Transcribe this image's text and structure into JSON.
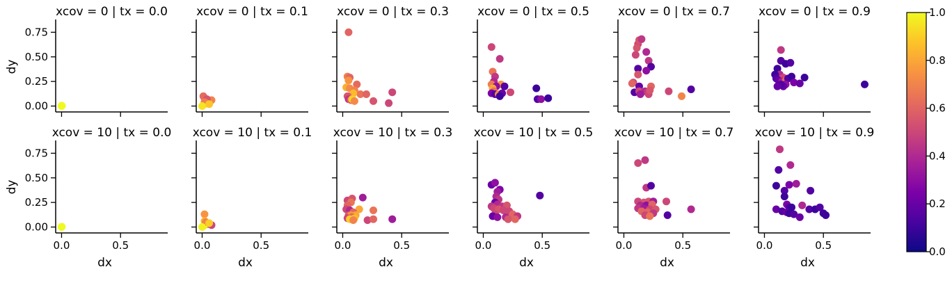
{
  "chart_data": {
    "type": "scatter",
    "grid": false,
    "shared_axes": true,
    "xlabel": "dx",
    "ylabel": "dy",
    "xlim": [
      -0.05,
      0.9
    ],
    "ylim": [
      -0.06,
      0.88
    ],
    "xticks": [
      0.0,
      0.5
    ],
    "xtick_labels": [
      "0.0",
      "0.5"
    ],
    "yticks": [
      0.0,
      0.25,
      0.5,
      0.75
    ],
    "ytick_labels": [
      "0.00",
      "0.25",
      "0.50",
      "0.75"
    ],
    "colormap": "plasma",
    "colorbar": {
      "range": [
        0.0,
        1.0
      ],
      "ticks": [
        0.0,
        0.2,
        0.4,
        0.6,
        0.8,
        1.0
      ],
      "tick_labels": [
        "0.0",
        "0.2",
        "0.4",
        "0.6",
        "0.8",
        "1.0"
      ],
      "placement": "right"
    },
    "panels": [
      {
        "title": "xcov = 0 | tx = 0.0",
        "points": [
          [
            0.0,
            0.0,
            1.0
          ],
          [
            0.003,
            0.002,
            1.0
          ],
          [
            0.001,
            0.004,
            1.0
          ]
        ]
      },
      {
        "title": "xcov = 0 | tx = 0.1",
        "points": [
          [
            0.02,
            0.08,
            0.72
          ],
          [
            0.01,
            0.1,
            0.62
          ],
          [
            0.03,
            0.05,
            0.85
          ],
          [
            0.05,
            0.03,
            0.9
          ],
          [
            0.02,
            0.02,
            0.93
          ],
          [
            0.01,
            0.01,
            0.97
          ],
          [
            0.08,
            0.06,
            0.7
          ],
          [
            0.04,
            0.07,
            0.55
          ],
          [
            0.03,
            0.03,
            0.8
          ],
          [
            0.02,
            0.04,
            0.68
          ],
          [
            0.06,
            0.02,
            0.88
          ],
          [
            0.0,
            0.0,
            0.95
          ]
        ]
      },
      {
        "title": "xcov = 0 | tx = 0.3",
        "points": [
          [
            0.05,
            0.75,
            0.6
          ],
          [
            0.04,
            0.3,
            0.68
          ],
          [
            0.06,
            0.29,
            0.6
          ],
          [
            0.05,
            0.26,
            0.75
          ],
          [
            0.03,
            0.19,
            0.82
          ],
          [
            0.06,
            0.18,
            0.72
          ],
          [
            0.12,
            0.22,
            0.62
          ],
          [
            0.1,
            0.16,
            0.7
          ],
          [
            0.15,
            0.12,
            0.65
          ],
          [
            0.2,
            0.12,
            0.6
          ],
          [
            0.08,
            0.11,
            0.82
          ],
          [
            0.09,
            0.13,
            0.85
          ],
          [
            0.05,
            0.1,
            0.75
          ],
          [
            0.04,
            0.1,
            0.55
          ],
          [
            0.05,
            0.07,
            0.45
          ],
          [
            0.07,
            0.06,
            0.6
          ],
          [
            0.08,
            0.07,
            0.9
          ],
          [
            0.1,
            0.05,
            0.72
          ],
          [
            0.26,
            0.05,
            0.55
          ],
          [
            0.39,
            0.03,
            0.5
          ],
          [
            0.42,
            0.14,
            0.5
          ]
        ]
      },
      {
        "title": "xcov = 0 | tx = 0.5",
        "points": [
          [
            0.07,
            0.6,
            0.5
          ],
          [
            0.14,
            0.48,
            0.45
          ],
          [
            0.08,
            0.35,
            0.65
          ],
          [
            0.1,
            0.3,
            0.45
          ],
          [
            0.09,
            0.25,
            0.4
          ],
          [
            0.07,
            0.22,
            0.68
          ],
          [
            0.15,
            0.22,
            0.75
          ],
          [
            0.11,
            0.2,
            0.3
          ],
          [
            0.18,
            0.2,
            0.15
          ],
          [
            0.08,
            0.18,
            0.8
          ],
          [
            0.09,
            0.15,
            0.65
          ],
          [
            0.07,
            0.13,
            0.25
          ],
          [
            0.1,
            0.12,
            0.15
          ],
          [
            0.13,
            0.12,
            0.72
          ],
          [
            0.16,
            0.13,
            0.2
          ],
          [
            0.14,
            0.1,
            0.1
          ],
          [
            0.23,
            0.14,
            0.5
          ],
          [
            0.45,
            0.18,
            0.1
          ],
          [
            0.46,
            0.07,
            0.15
          ],
          [
            0.49,
            0.07,
            0.3
          ],
          [
            0.55,
            0.08,
            0.1
          ]
        ]
      },
      {
        "title": "xcov = 0 | tx = 0.7",
        "points": [
          [
            0.12,
            0.63,
            0.5
          ],
          [
            0.13,
            0.67,
            0.55
          ],
          [
            0.15,
            0.68,
            0.45
          ],
          [
            0.11,
            0.59,
            0.55
          ],
          [
            0.1,
            0.52,
            0.5
          ],
          [
            0.19,
            0.55,
            0.4
          ],
          [
            0.21,
            0.46,
            0.45
          ],
          [
            0.12,
            0.38,
            0.15
          ],
          [
            0.23,
            0.4,
            0.15
          ],
          [
            0.19,
            0.36,
            0.3
          ],
          [
            0.12,
            0.32,
            0.55
          ],
          [
            0.08,
            0.24,
            0.5
          ],
          [
            0.07,
            0.23,
            0.6
          ],
          [
            0.13,
            0.2,
            0.2
          ],
          [
            0.23,
            0.2,
            0.6
          ],
          [
            0.09,
            0.14,
            0.15
          ],
          [
            0.13,
            0.15,
            0.5
          ],
          [
            0.18,
            0.15,
            0.4
          ],
          [
            0.2,
            0.14,
            0.45
          ],
          [
            0.21,
            0.12,
            0.5
          ],
          [
            0.22,
            0.16,
            0.55
          ],
          [
            0.14,
            0.12,
            0.35
          ],
          [
            0.38,
            0.15,
            0.5
          ],
          [
            0.49,
            0.1,
            0.7
          ],
          [
            0.57,
            0.17,
            0.15
          ]
        ]
      },
      {
        "title": "xcov = 0 | tx = 0.9",
        "points": [
          [
            0.14,
            0.57,
            0.45
          ],
          [
            0.14,
            0.46,
            0.15
          ],
          [
            0.18,
            0.43,
            0.1
          ],
          [
            0.22,
            0.44,
            0.15
          ],
          [
            0.11,
            0.38,
            0.1
          ],
          [
            0.13,
            0.32,
            0.4
          ],
          [
            0.16,
            0.29,
            0.5
          ],
          [
            0.09,
            0.32,
            0.1
          ],
          [
            0.1,
            0.28,
            0.15
          ],
          [
            0.12,
            0.26,
            0.2
          ],
          [
            0.15,
            0.25,
            0.35
          ],
          [
            0.18,
            0.26,
            0.6
          ],
          [
            0.2,
            0.28,
            0.15
          ],
          [
            0.23,
            0.3,
            0.1
          ],
          [
            0.25,
            0.24,
            0.25
          ],
          [
            0.3,
            0.23,
            0.2
          ],
          [
            0.34,
            0.29,
            0.1
          ],
          [
            0.18,
            0.22,
            0.3
          ],
          [
            0.16,
            0.2,
            0.2
          ],
          [
            0.14,
            0.22,
            0.15
          ],
          [
            0.11,
            0.2,
            0.2
          ],
          [
            0.85,
            0.22,
            0.1
          ]
        ]
      },
      {
        "title": "xcov = 10 | tx = 0.0",
        "points": [
          [
            0.0,
            0.0,
            1.0
          ],
          [
            0.002,
            0.003,
            1.0
          ],
          [
            0.001,
            0.001,
            1.0
          ]
        ]
      },
      {
        "title": "xcov = 10 | tx = 0.1",
        "points": [
          [
            0.02,
            0.13,
            0.75
          ],
          [
            0.02,
            0.06,
            0.85
          ],
          [
            0.03,
            0.04,
            0.95
          ],
          [
            0.05,
            0.03,
            0.55
          ],
          [
            0.02,
            0.02,
            0.92
          ],
          [
            0.01,
            0.01,
            0.97
          ],
          [
            0.08,
            0.02,
            0.5
          ],
          [
            0.03,
            0.05,
            0.7
          ],
          [
            0.06,
            0.04,
            0.9
          ],
          [
            0.0,
            0.0,
            0.98
          ]
        ]
      },
      {
        "title": "xcov = 10 | tx = 0.3",
        "points": [
          [
            0.04,
            0.27,
            0.5
          ],
          [
            0.08,
            0.29,
            0.55
          ],
          [
            0.17,
            0.3,
            0.35
          ],
          [
            0.07,
            0.25,
            0.65
          ],
          [
            0.04,
            0.22,
            0.6
          ],
          [
            0.03,
            0.18,
            0.5
          ],
          [
            0.06,
            0.17,
            0.4
          ],
          [
            0.14,
            0.18,
            0.8
          ],
          [
            0.26,
            0.17,
            0.65
          ],
          [
            0.09,
            0.15,
            0.6
          ],
          [
            0.05,
            0.12,
            0.55
          ],
          [
            0.07,
            0.12,
            0.75
          ],
          [
            0.11,
            0.12,
            0.8
          ],
          [
            0.04,
            0.09,
            0.5
          ],
          [
            0.08,
            0.1,
            0.6
          ],
          [
            0.1,
            0.09,
            0.85
          ],
          [
            0.06,
            0.08,
            0.9
          ],
          [
            0.21,
            0.07,
            0.5
          ],
          [
            0.26,
            0.08,
            0.6
          ],
          [
            0.42,
            0.08,
            0.35
          ],
          [
            0.09,
            0.07,
            0.7
          ]
        ]
      },
      {
        "title": "xcov = 10 | tx = 0.5",
        "points": [
          [
            0.07,
            0.43,
            0.2
          ],
          [
            0.1,
            0.45,
            0.3
          ],
          [
            0.14,
            0.38,
            0.25
          ],
          [
            0.12,
            0.36,
            0.35
          ],
          [
            0.11,
            0.31,
            0.4
          ],
          [
            0.13,
            0.28,
            0.45
          ],
          [
            0.1,
            0.25,
            0.2
          ],
          [
            0.12,
            0.23,
            0.4
          ],
          [
            0.07,
            0.21,
            0.45
          ],
          [
            0.16,
            0.21,
            0.45
          ],
          [
            0.2,
            0.22,
            0.55
          ],
          [
            0.09,
            0.19,
            0.5
          ],
          [
            0.13,
            0.18,
            0.55
          ],
          [
            0.17,
            0.17,
            0.5
          ],
          [
            0.22,
            0.16,
            0.5
          ],
          [
            0.1,
            0.13,
            0.5
          ],
          [
            0.25,
            0.13,
            0.6
          ],
          [
            0.08,
            0.11,
            0.2
          ],
          [
            0.12,
            0.1,
            0.3
          ],
          [
            0.19,
            0.1,
            0.4
          ],
          [
            0.29,
            0.11,
            0.45
          ],
          [
            0.21,
            0.08,
            0.55
          ],
          [
            0.27,
            0.08,
            0.6
          ],
          [
            0.48,
            0.32,
            0.15
          ]
        ]
      },
      {
        "title": "xcov = 10 | tx = 0.7",
        "points": [
          [
            0.12,
            0.65,
            0.5
          ],
          [
            0.18,
            0.68,
            0.45
          ],
          [
            0.19,
            0.4,
            0.45
          ],
          [
            0.23,
            0.42,
            0.15
          ],
          [
            0.12,
            0.26,
            0.5
          ],
          [
            0.17,
            0.25,
            0.55
          ],
          [
            0.21,
            0.26,
            0.55
          ],
          [
            0.25,
            0.26,
            0.35
          ],
          [
            0.36,
            0.26,
            0.5
          ],
          [
            0.14,
            0.22,
            0.4
          ],
          [
            0.19,
            0.22,
            0.3
          ],
          [
            0.24,
            0.23,
            0.6
          ],
          [
            0.12,
            0.19,
            0.45
          ],
          [
            0.17,
            0.19,
            0.35
          ],
          [
            0.22,
            0.18,
            0.5
          ],
          [
            0.27,
            0.18,
            0.55
          ],
          [
            0.15,
            0.16,
            0.6
          ],
          [
            0.2,
            0.15,
            0.6
          ],
          [
            0.25,
            0.14,
            0.45
          ],
          [
            0.18,
            0.12,
            0.5
          ],
          [
            0.22,
            0.11,
            0.65
          ],
          [
            0.37,
            0.12,
            0.15
          ],
          [
            0.57,
            0.18,
            0.4
          ]
        ]
      },
      {
        "title": "xcov = 10 | tx = 0.9",
        "points": [
          [
            0.13,
            0.79,
            0.45
          ],
          [
            0.22,
            0.63,
            0.4
          ],
          [
            0.12,
            0.58,
            0.15
          ],
          [
            0.17,
            0.37,
            0.15
          ],
          [
            0.17,
            0.31,
            0.1
          ],
          [
            0.21,
            0.43,
            0.25
          ],
          [
            0.1,
            0.42,
            0.1
          ],
          [
            0.27,
            0.44,
            0.35
          ],
          [
            0.19,
            0.23,
            0.25
          ],
          [
            0.21,
            0.2,
            0.15
          ],
          [
            0.32,
            0.22,
            0.4
          ],
          [
            0.23,
            0.2,
            0.1
          ],
          [
            0.39,
            0.37,
            0.15
          ],
          [
            0.1,
            0.18,
            0.2
          ],
          [
            0.15,
            0.16,
            0.15
          ],
          [
            0.19,
            0.15,
            0.2
          ],
          [
            0.21,
            0.14,
            0.1
          ],
          [
            0.25,
            0.13,
            0.15
          ],
          [
            0.3,
            0.1,
            0.2
          ],
          [
            0.38,
            0.18,
            0.15
          ],
          [
            0.43,
            0.18,
            0.1
          ],
          [
            0.47,
            0.2,
            0.15
          ],
          [
            0.5,
            0.14,
            0.1
          ],
          [
            0.52,
            0.12,
            0.1
          ]
        ]
      }
    ]
  }
}
